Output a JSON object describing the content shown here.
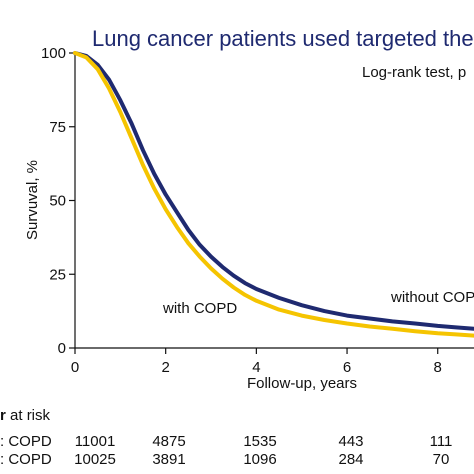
{
  "chart_data": {
    "type": "line",
    "title": "Lung cancer patients used targeted the",
    "annotation": "Log-rank test, p",
    "xlabel": "Follow-up, years",
    "ylabel": "Survuval, %",
    "xlim": [
      0,
      8.8
    ],
    "ylim": [
      0,
      100
    ],
    "xticks": [
      "0",
      "2",
      "4",
      "6",
      "8"
    ],
    "yticks": [
      "0",
      "25",
      "50",
      "75",
      "100"
    ],
    "grid": false,
    "colors": {
      "without": "#1f2a70",
      "with": "#f5c400"
    },
    "series": [
      {
        "name": "without COPD",
        "color": "#1f2a70",
        "x": [
          0,
          0.25,
          0.5,
          0.75,
          1.0,
          1.25,
          1.5,
          1.75,
          2.0,
          2.25,
          2.5,
          2.75,
          3.0,
          3.25,
          3.5,
          3.75,
          4.0,
          4.5,
          5.0,
          5.5,
          6.0,
          6.5,
          7.0,
          7.5,
          8.0,
          8.4,
          8.8
        ],
        "y": [
          100,
          99,
          96,
          91,
          84,
          76,
          67,
          59,
          52,
          46,
          40,
          35,
          31,
          27.5,
          24.5,
          22,
          20,
          17,
          14.5,
          12.5,
          11,
          10,
          9,
          8.3,
          7.5,
          7,
          6.5
        ]
      },
      {
        "name": "with COPD",
        "color": "#f5c400",
        "x": [
          0,
          0.25,
          0.5,
          0.75,
          1.0,
          1.25,
          1.5,
          1.75,
          2.0,
          2.25,
          2.5,
          2.75,
          3.0,
          3.25,
          3.5,
          3.75,
          4.0,
          4.5,
          5.0,
          5.5,
          6.0,
          6.5,
          7.0,
          7.5,
          8.0,
          8.4,
          8.8
        ],
        "y": [
          100,
          98.5,
          94.5,
          88,
          80,
          71,
          62,
          54,
          47,
          41,
          35.5,
          31,
          27,
          23.5,
          20.5,
          18,
          16,
          13,
          11,
          9.5,
          8.3,
          7.3,
          6.5,
          5.7,
          5,
          4.6,
          4.2
        ]
      }
    ],
    "labels": {
      "with": "with COPD",
      "without": "without COPD"
    },
    "risk_table": {
      "header": "r at risk",
      "rows": [
        {
          "label": ": COPD",
          "values": [
            "11001",
            "4875",
            "1535",
            "443",
            "111"
          ]
        },
        {
          "label": ": COPD",
          "values": [
            "10025",
            "3891",
            "1096",
            "284",
            "70"
          ]
        }
      ]
    }
  }
}
